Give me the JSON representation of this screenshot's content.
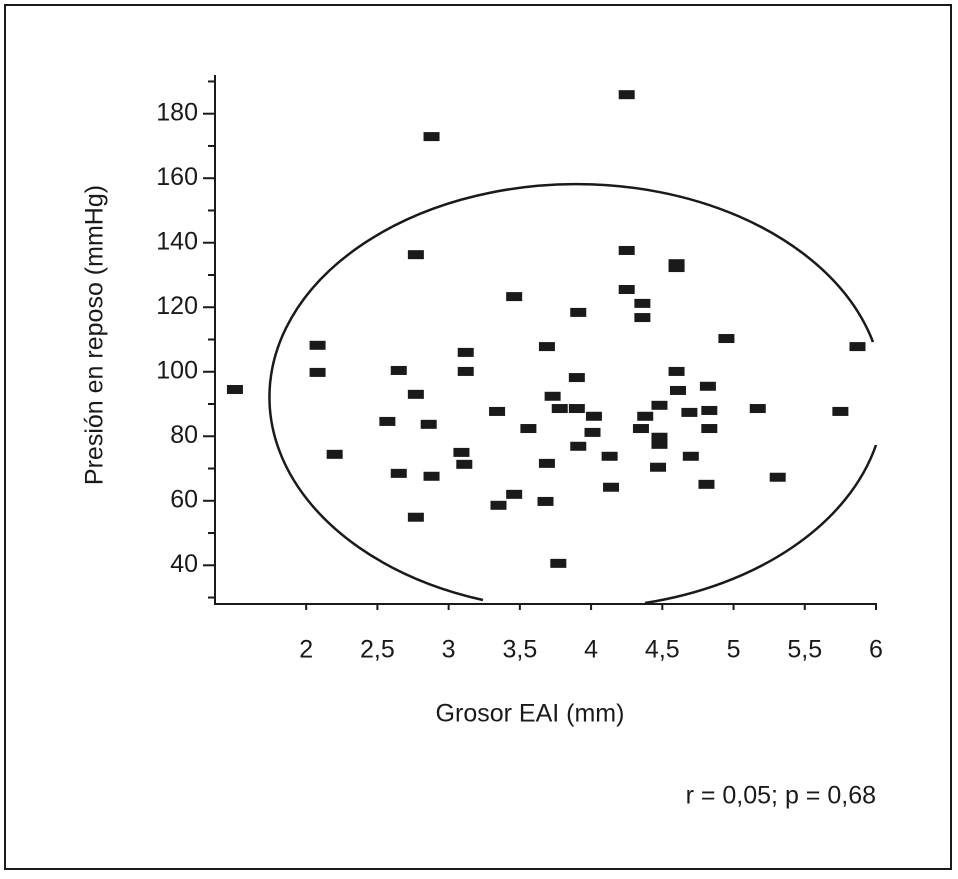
{
  "chart_data": {
    "type": "scatter",
    "x_label": "Grosor EAI (mm)",
    "y_label": "Presión en reposo (mmHg)",
    "annotation": "r = 0,05; p = 0,68",
    "color": "#1a1a1a",
    "xlim": [
      1.36,
      6
    ],
    "ylim": [
      28,
      192
    ],
    "xticks": [
      2,
      {
        "value": 2.5,
        "label": "2,5"
      },
      3,
      {
        "value": 3.5,
        "label": "3,5"
      },
      4,
      {
        "value": 4.5,
        "label": "4,5"
      },
      5,
      {
        "value": 5.5,
        "label": "5,5"
      },
      6
    ],
    "yticks": [
      40,
      60,
      80,
      100,
      120,
      140,
      160,
      180
    ],
    "yminorticks": [
      30,
      50,
      70,
      90,
      110,
      130,
      150,
      170,
      190
    ],
    "x": [
      1.5,
      2.08,
      2.08,
      2.2,
      2.57,
      2.65,
      2.65,
      2.77,
      2.77,
      2.77,
      2.86,
      2.88,
      2.88,
      3.12,
      3.12,
      3.09,
      3.11,
      3.34,
      3.35,
      3.46,
      3.46,
      3.56,
      3.69,
      3.69,
      3.68,
      3.73,
      3.78,
      3.77,
      3.9,
      3.91,
      3.9,
      3.91,
      4.02,
      4.01,
      4.13,
      4.14,
      4.25,
      4.25,
      4.25,
      4.36,
      4.36,
      4.38,
      4.35,
      4.48,
      4.48,
      4.48,
      4.47,
      4.6,
      4.6,
      4.6,
      4.61,
      4.69,
      4.7,
      4.82,
      4.83,
      4.83,
      4.81,
      4.95,
      5.17,
      5.31,
      5.75,
      5.87
    ],
    "y": [
      94.5,
      108.2,
      99.8,
      74.4,
      84.6,
      100.4,
      68.5,
      136.3,
      93,
      54.9,
      83.7,
      67.6,
      172.9,
      106,
      100.1,
      75,
      71.3,
      87.7,
      58.6,
      123.3,
      62,
      82.4,
      107.8,
      71.6,
      59.8,
      92.4,
      88.6,
      40.6,
      98.2,
      118.4,
      88.6,
      76.9,
      86.2,
      81.2,
      73.8,
      64.2,
      185.9,
      137.6,
      125.5,
      121.2,
      116.8,
      86.2,
      82.4,
      89.6,
      79.7,
      77.5,
      70.4,
      133.5,
      132.3,
      100.1,
      94.2,
      87.4,
      73.8,
      95.5,
      88,
      82.4,
      65.1,
      110.3,
      88.6,
      67.3,
      87.7,
      107.8
    ]
  }
}
